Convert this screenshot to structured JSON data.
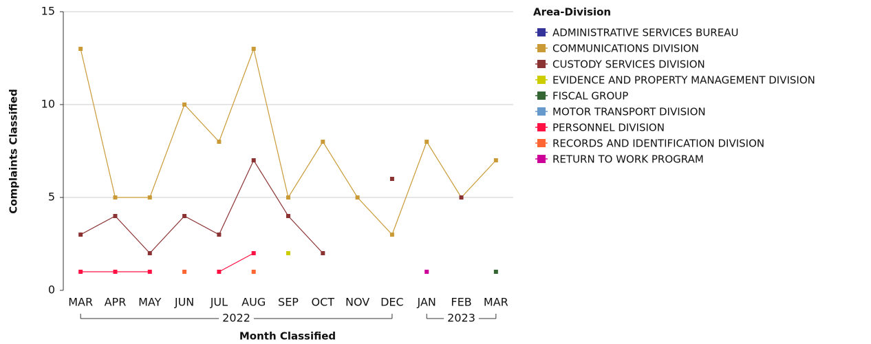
{
  "chart_data": {
    "type": "line",
    "x_label": "Month Classified",
    "y_label": "Complaints Classified",
    "legend_title": "Area-Division",
    "legend": "right",
    "grid": true,
    "categories": [
      "MAR",
      "APR",
      "MAY",
      "JUN",
      "JUL",
      "AUG",
      "SEP",
      "OCT",
      "NOV",
      "DEC",
      "JAN",
      "FEB",
      "MAR"
    ],
    "x_groups": [
      {
        "label": "2022",
        "span": 10
      },
      {
        "label": "2023",
        "span": 3
      }
    ],
    "ylim": [
      0,
      15
    ],
    "yticks": [
      0,
      5,
      10,
      15
    ],
    "series": [
      {
        "name": "ADMINISTRATIVE SERVICES BUREAU",
        "color": "#333399",
        "values": [
          null,
          null,
          null,
          null,
          null,
          null,
          null,
          null,
          null,
          null,
          null,
          null,
          null
        ]
      },
      {
        "name": "COMMUNICATIONS DIVISION",
        "color": "#c99a36",
        "values": [
          13,
          5,
          5,
          10,
          8,
          13,
          5,
          8,
          5,
          3,
          8,
          5,
          7
        ]
      },
      {
        "name": "CUSTODY SERVICES DIVISION",
        "color": "#8b3333",
        "values": [
          3,
          4,
          2,
          4,
          3,
          7,
          4,
          2,
          null,
          6,
          null,
          5,
          null
        ]
      },
      {
        "name": "EVIDENCE AND PROPERTY MANAGEMENT DIVISION",
        "color": "#cccc00",
        "values": [
          null,
          null,
          null,
          null,
          null,
          null,
          2,
          null,
          null,
          null,
          null,
          null,
          null
        ]
      },
      {
        "name": "FISCAL GROUP",
        "color": "#336633",
        "values": [
          null,
          null,
          null,
          null,
          null,
          null,
          null,
          null,
          null,
          null,
          null,
          null,
          1
        ]
      },
      {
        "name": "MOTOR TRANSPORT DIVISION",
        "color": "#6699cc",
        "values": [
          null,
          null,
          null,
          null,
          null,
          null,
          null,
          null,
          null,
          null,
          null,
          null,
          null
        ]
      },
      {
        "name": "PERSONNEL DIVISION",
        "color": "#ff1144",
        "values": [
          1,
          1,
          1,
          null,
          1,
          2,
          null,
          null,
          null,
          null,
          null,
          null,
          null
        ]
      },
      {
        "name": "RECORDS AND IDENTIFICATION DIVISION",
        "color": "#ff6633",
        "values": [
          null,
          null,
          null,
          1,
          null,
          1,
          null,
          null,
          null,
          null,
          null,
          null,
          null
        ]
      },
      {
        "name": "RETURN TO WORK PROGRAM",
        "color": "#cc0099",
        "values": [
          null,
          null,
          null,
          null,
          null,
          null,
          null,
          null,
          null,
          null,
          1,
          null,
          null
        ]
      }
    ]
  }
}
